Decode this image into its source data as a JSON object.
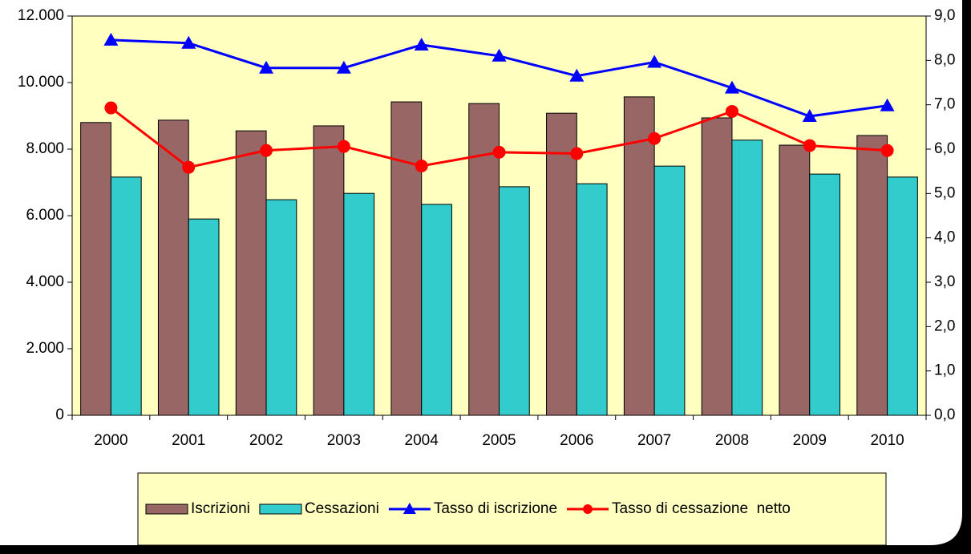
{
  "chart_data": {
    "type": "bar",
    "categories": [
      "2000",
      "2001",
      "2002",
      "2003",
      "2004",
      "2005",
      "2006",
      "2007",
      "2008",
      "2009",
      "2010"
    ],
    "series": [
      {
        "name": "Iscrizioni",
        "type": "bar",
        "color": "#996666",
        "values": [
          8800,
          8870,
          8550,
          8700,
          9420,
          9370,
          9080,
          9570,
          8940,
          8120,
          8410
        ]
      },
      {
        "name": "Cessazioni",
        "type": "bar",
        "color": "#33CCCC",
        "values": [
          7160,
          5900,
          6480,
          6670,
          6340,
          6870,
          6960,
          7490,
          8270,
          7250,
          7160
        ]
      },
      {
        "name": "Tasso di iscrizione",
        "type": "line",
        "axis": "y2",
        "marker": "triangle",
        "color": "#0000FF",
        "values": [
          8.46,
          8.39,
          7.83,
          7.83,
          8.35,
          8.1,
          7.65,
          7.96,
          7.38,
          6.74,
          6.98
        ]
      },
      {
        "name": "Tasso di cessazione  netto",
        "type": "line",
        "axis": "y2",
        "marker": "circle",
        "color": "#FF0000",
        "values": [
          6.93,
          5.59,
          5.97,
          6.06,
          5.62,
          5.93,
          5.9,
          6.24,
          6.85,
          6.08,
          5.97
        ]
      }
    ],
    "ylim": [
      0,
      12000
    ],
    "yticks": [
      0,
      {
        "value": 2000,
        "label": "2.000"
      },
      {
        "value": 4000,
        "label": "4.000"
      },
      {
        "value": 6000,
        "label": "6.000"
      },
      {
        "value": 8000,
        "label": "8.000"
      },
      {
        "value": 10000,
        "label": "10.000"
      },
      {
        "value": 12000,
        "label": "12.000"
      }
    ],
    "y2lim": [
      0,
      9
    ],
    "y2ticks": [
      {
        "value": 0,
        "label": "0,0"
      },
      {
        "value": 1,
        "label": "1,0"
      },
      {
        "value": 2,
        "label": "2,0"
      },
      {
        "value": 3,
        "label": "3,0"
      },
      {
        "value": 4,
        "label": "4,0"
      },
      {
        "value": 5,
        "label": "5,0"
      },
      {
        "value": 6,
        "label": "6,0"
      },
      {
        "value": 7,
        "label": "7,0"
      },
      {
        "value": 8,
        "label": "8,0"
      },
      {
        "value": 9,
        "label": "9,0"
      }
    ],
    "grid": false,
    "legend": "bottom"
  }
}
